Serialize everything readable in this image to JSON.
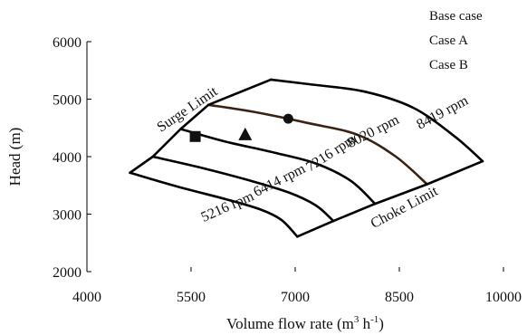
{
  "chart_data": {
    "type": "line",
    "xlabel_main": "Volume flow rate (m",
    "xlabel_sup1": "3",
    "xlabel_mid": " h",
    "xlabel_sup2": "-1",
    "xlabel_end": ")",
    "ylabel": "Head (m)",
    "xlim": [
      4000,
      10000
    ],
    "ylim": [
      2000,
      6000
    ],
    "xticks": [
      4000,
      5500,
      7000,
      8500,
      10000
    ],
    "yticks": [
      2000,
      3000,
      4000,
      5000,
      6000
    ],
    "legend": [
      "Base case",
      "Case A",
      "Case B"
    ],
    "speed_lines": [
      {
        "name": "5216 rpm",
        "label": {
          "x": 6050,
          "y": 3060,
          "angle": -24
        },
        "points": [
          [
            4620,
            3720
          ],
          [
            5300,
            3480
          ],
          [
            6000,
            3260
          ],
          [
            6500,
            3080
          ],
          [
            6800,
            2900
          ],
          [
            7030,
            2610
          ]
        ]
      },
      {
        "name": "6414 rpm",
        "label": {
          "x": 6800,
          "y": 3520,
          "angle": -27
        },
        "points": [
          [
            4950,
            4000
          ],
          [
            5600,
            3820
          ],
          [
            6300,
            3600
          ],
          [
            6900,
            3380
          ],
          [
            7300,
            3150
          ],
          [
            7550,
            2880
          ]
        ]
      },
      {
        "name": "7216 rpm",
        "label": {
          "x": 7550,
          "y": 4000,
          "angle": -33
        },
        "points": [
          [
            5350,
            4480
          ],
          [
            6000,
            4260
          ],
          [
            6700,
            4070
          ],
          [
            7300,
            3880
          ],
          [
            7800,
            3580
          ],
          [
            8150,
            3180
          ]
        ]
      },
      {
        "name": "8020 rpm",
        "label": {
          "x": 8150,
          "y": 4370,
          "angle": -27
        },
        "points": [
          [
            5750,
            4900
          ],
          [
            6400,
            4780
          ],
          [
            7200,
            4580
          ],
          [
            7900,
            4380
          ],
          [
            8450,
            4000
          ],
          [
            8900,
            3520
          ]
        ]
      },
      {
        "name": "8419 rpm",
        "label": {
          "x": 9150,
          "y": 4700,
          "angle": -28
        },
        "points": [
          [
            6650,
            5340
          ],
          [
            7200,
            5260
          ],
          [
            8000,
            5130
          ],
          [
            8700,
            4850
          ],
          [
            9300,
            4350
          ],
          [
            9700,
            3920
          ]
        ]
      }
    ],
    "surge_limit": {
      "label": "Surge Limit",
      "label_pos": {
        "x": 5480,
        "y": 4760,
        "angle": -34
      },
      "points": [
        [
          4620,
          3720
        ],
        [
          4950,
          4000
        ],
        [
          5350,
          4480
        ],
        [
          5750,
          4900
        ],
        [
          6650,
          5340
        ]
      ]
    },
    "choke_limit": {
      "label": "Choke Limit",
      "label_pos": {
        "x": 8600,
        "y": 3050,
        "angle": -28
      },
      "points": [
        [
          7030,
          2610
        ],
        [
          7550,
          2880
        ],
        [
          8150,
          3180
        ],
        [
          8900,
          3520
        ],
        [
          9700,
          3920
        ]
      ]
    },
    "markers": [
      {
        "name": "Base case",
        "shape": "circle",
        "x": 6900,
        "y": 4660
      },
      {
        "name": "Case A",
        "shape": "square",
        "x": 5560,
        "y": 4350
      },
      {
        "name": "Case B",
        "shape": "triangle",
        "x": 6280,
        "y": 4380
      }
    ],
    "colors": {
      "line": "#000000",
      "line_8020": "#3a2314"
    }
  }
}
